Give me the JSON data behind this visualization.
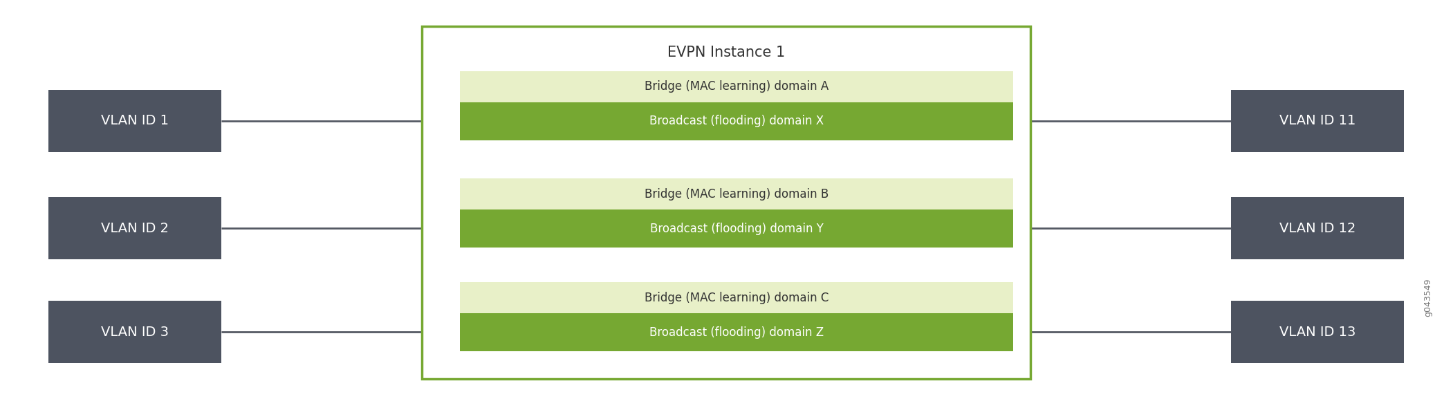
{
  "title": "EVPN Instance 1",
  "bg_color": "#ffffff",
  "dark_box_color": "#4d5360",
  "light_green_color": "#e8f0c8",
  "dark_green_color": "#76a832",
  "evpn_border_color": "#76a832",
  "line_color": "#555a64",
  "dark_text_color": "#ffffff",
  "black_text_color": "#333333",
  "vlan_left": [
    "VLAN ID 1",
    "VLAN ID 2",
    "VLAN ID 3"
  ],
  "vlan_right": [
    "VLAN ID 11",
    "VLAN ID 12",
    "VLAN ID 13"
  ],
  "bridge_labels": [
    "Bridge (MAC learning) domain A",
    "Bridge (MAC learning) domain B",
    "Bridge (MAC learning) domain C"
  ],
  "broadcast_labels": [
    "Broadcast (flooding) domain X",
    "Broadcast (flooding) domain Y",
    "Broadcast (flooding) domain Z"
  ],
  "watermark": "g043549",
  "figsize": [
    21.01,
    5.8
  ],
  "dpi": 100
}
